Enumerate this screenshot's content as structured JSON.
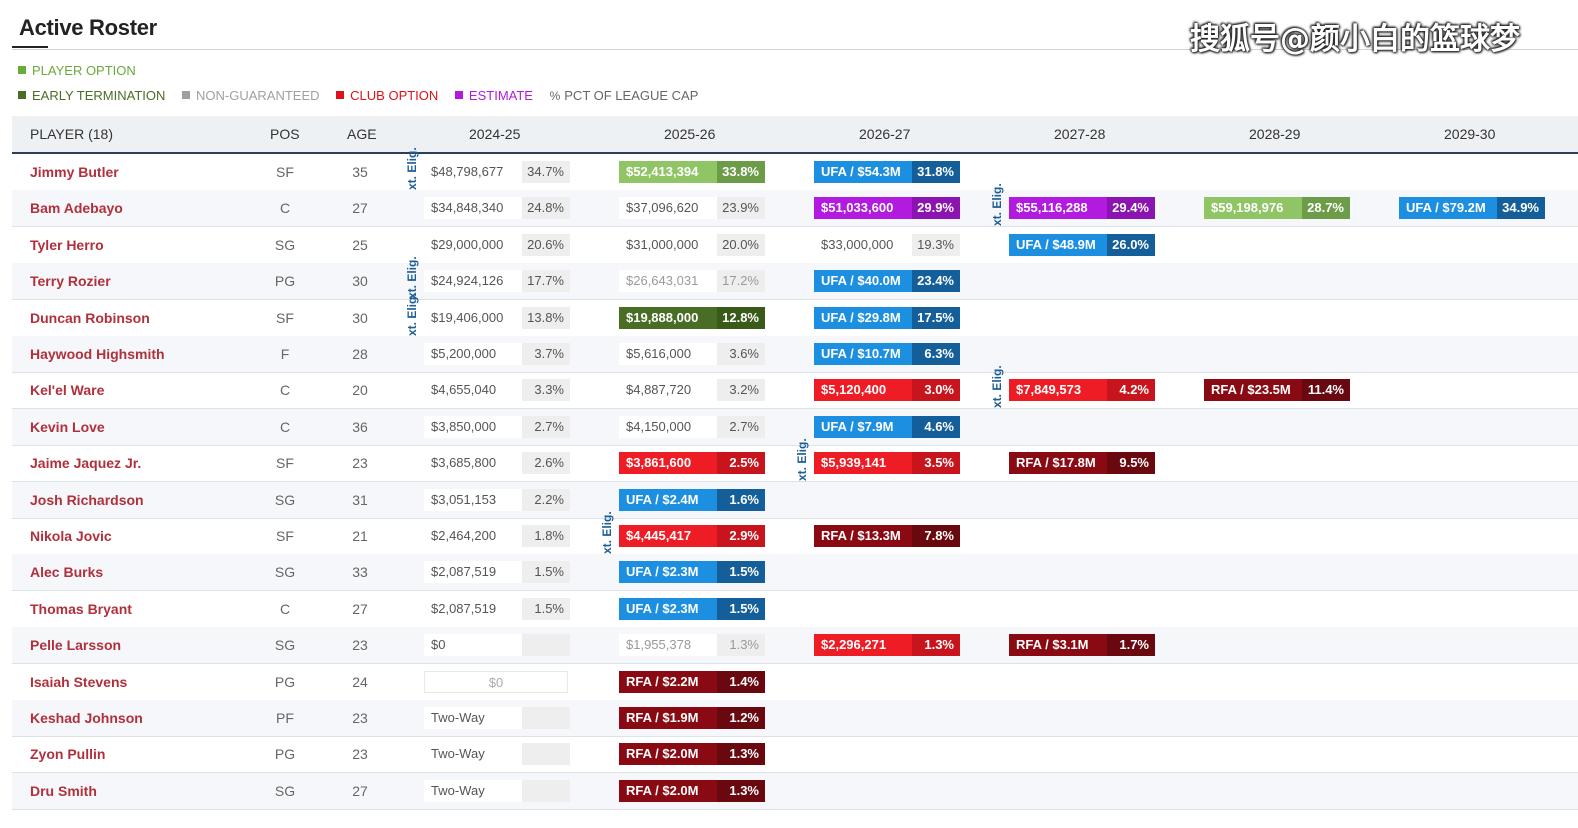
{
  "page_title": "Active Roster",
  "watermark": "搜狐号@颜小白的篮球梦",
  "legend": [
    {
      "label": "PLAYER OPTION",
      "color": "#6aaa3a"
    },
    {
      "label": "EARLY TERMINATION",
      "color": "#4a6d25"
    },
    {
      "label": "NON-GUARANTEED",
      "color": "#a0a0a0"
    },
    {
      "label": "CLUB OPTION",
      "color": "#e0101a"
    },
    {
      "label": "ESTIMATE",
      "color": "#b21ae0"
    },
    {
      "label": "PCT OF LEAGUE CAP",
      "color": "#666666",
      "icon": "%"
    }
  ],
  "ext_label": "xt. Elig.",
  "columns": [
    "PLAYER (18)",
    "POS",
    "AGE",
    "2024-25",
    "2025-26",
    "2026-27",
    "2027-28",
    "2028-29",
    "2029-30"
  ],
  "players": [
    {
      "name": "Jimmy Butler",
      "pos": "SF",
      "age": "35",
      "cells": [
        {
          "a": "$48,798,677",
          "p": "34.7%",
          "s": "plain"
        },
        {
          "a": "$52,413,394",
          "p": "33.8%",
          "s": "player"
        },
        {
          "a": "UFA / $54.3M",
          "p": "31.8%",
          "s": "ufa"
        },
        null,
        null,
        null
      ]
    },
    {
      "name": "Bam Adebayo",
      "pos": "C",
      "age": "27",
      "cells": [
        {
          "a": "$34,848,340",
          "p": "24.8%",
          "s": "plain"
        },
        {
          "a": "$37,096,620",
          "p": "23.9%",
          "s": "plain"
        },
        {
          "a": "$51,033,600",
          "p": "29.9%",
          "s": "est"
        },
        {
          "a": "$55,116,288",
          "p": "29.4%",
          "s": "est"
        },
        {
          "a": "$59,198,976",
          "p": "28.7%",
          "s": "player"
        },
        {
          "a": "UFA / $79.2M",
          "p": "34.9%",
          "s": "ufa"
        }
      ]
    },
    {
      "name": "Tyler Herro",
      "pos": "SG",
      "age": "25",
      "cells": [
        {
          "a": "$29,000,000",
          "p": "20.6%",
          "s": "plain"
        },
        {
          "a": "$31,000,000",
          "p": "20.0%",
          "s": "plain"
        },
        {
          "a": "$33,000,000",
          "p": "19.3%",
          "s": "plain"
        },
        {
          "a": "UFA / $48.9M",
          "p": "26.0%",
          "s": "ufa"
        },
        null,
        null
      ]
    },
    {
      "name": "Terry Rozier",
      "pos": "PG",
      "age": "30",
      "cells": [
        {
          "a": "$24,924,126",
          "p": "17.7%",
          "s": "plain"
        },
        {
          "a": "$26,643,031",
          "p": "17.2%",
          "s": "dim"
        },
        {
          "a": "UFA / $40.0M",
          "p": "23.4%",
          "s": "ufa"
        },
        null,
        null,
        null
      ]
    },
    {
      "name": "Duncan Robinson",
      "pos": "SF",
      "age": "30",
      "cells": [
        {
          "a": "$19,406,000",
          "p": "13.8%",
          "s": "plain"
        },
        {
          "a": "$19,888,000",
          "p": "12.8%",
          "s": "early"
        },
        {
          "a": "UFA / $29.8M",
          "p": "17.5%",
          "s": "ufa"
        },
        null,
        null,
        null
      ]
    },
    {
      "name": "Haywood Highsmith",
      "pos": "F",
      "age": "28",
      "cells": [
        {
          "a": "$5,200,000",
          "p": "3.7%",
          "s": "plain"
        },
        {
          "a": "$5,616,000",
          "p": "3.6%",
          "s": "plain"
        },
        {
          "a": "UFA / $10.7M",
          "p": "6.3%",
          "s": "ufa"
        },
        null,
        null,
        null
      ]
    },
    {
      "name": "Kel'el Ware",
      "pos": "C",
      "age": "20",
      "cells": [
        {
          "a": "$4,655,040",
          "p": "3.3%",
          "s": "plain"
        },
        {
          "a": "$4,887,720",
          "p": "3.2%",
          "s": "plain"
        },
        {
          "a": "$5,120,400",
          "p": "3.0%",
          "s": "club"
        },
        {
          "a": "$7,849,573",
          "p": "4.2%",
          "s": "club"
        },
        {
          "a": "RFA / $23.5M",
          "p": "11.4%",
          "s": "rfa"
        },
        null
      ]
    },
    {
      "name": "Kevin Love",
      "pos": "C",
      "age": "36",
      "cells": [
        {
          "a": "$3,850,000",
          "p": "2.7%",
          "s": "plain"
        },
        {
          "a": "$4,150,000",
          "p": "2.7%",
          "s": "plain"
        },
        {
          "a": "UFA / $7.9M",
          "p": "4.6%",
          "s": "ufa"
        },
        null,
        null,
        null
      ]
    },
    {
      "name": "Jaime Jaquez Jr.",
      "pos": "SF",
      "age": "23",
      "cells": [
        {
          "a": "$3,685,800",
          "p": "2.6%",
          "s": "plain"
        },
        {
          "a": "$3,861,600",
          "p": "2.5%",
          "s": "club"
        },
        {
          "a": "$5,939,141",
          "p": "3.5%",
          "s": "club"
        },
        {
          "a": "RFA / $17.8M",
          "p": "9.5%",
          "s": "rfa"
        },
        null,
        null
      ]
    },
    {
      "name": "Josh Richardson",
      "pos": "SG",
      "age": "31",
      "cells": [
        {
          "a": "$3,051,153",
          "p": "2.2%",
          "s": "plain"
        },
        {
          "a": "UFA / $2.4M",
          "p": "1.6%",
          "s": "ufa"
        },
        null,
        null,
        null,
        null
      ]
    },
    {
      "name": "Nikola Jovic",
      "pos": "SF",
      "age": "21",
      "cells": [
        {
          "a": "$2,464,200",
          "p": "1.8%",
          "s": "plain"
        },
        {
          "a": "$4,445,417",
          "p": "2.9%",
          "s": "club"
        },
        {
          "a": "RFA / $13.3M",
          "p": "7.8%",
          "s": "rfa"
        },
        null,
        null,
        null
      ]
    },
    {
      "name": "Alec Burks",
      "pos": "SG",
      "age": "33",
      "cells": [
        {
          "a": "$2,087,519",
          "p": "1.5%",
          "s": "plain"
        },
        {
          "a": "UFA / $2.3M",
          "p": "1.5%",
          "s": "ufa"
        },
        null,
        null,
        null,
        null
      ]
    },
    {
      "name": "Thomas Bryant",
      "pos": "C",
      "age": "27",
      "cells": [
        {
          "a": "$2,087,519",
          "p": "1.5%",
          "s": "plain"
        },
        {
          "a": "UFA / $2.3M",
          "p": "1.5%",
          "s": "ufa"
        },
        null,
        null,
        null,
        null
      ]
    },
    {
      "name": "Pelle Larsson",
      "pos": "SG",
      "age": "23",
      "cells": [
        {
          "a": "$0",
          "p": "",
          "s": "plain"
        },
        {
          "a": "$1,955,378",
          "p": "1.3%",
          "s": "dim"
        },
        {
          "a": "$2,296,271",
          "p": "1.3%",
          "s": "club"
        },
        {
          "a": "RFA / $3.1M",
          "p": "1.7%",
          "s": "rfa"
        },
        null,
        null
      ]
    },
    {
      "name": "Isaiah Stevens",
      "pos": "PG",
      "age": "24",
      "cells": [
        {
          "a": "$0",
          "p": "",
          "s": "center"
        },
        {
          "a": "RFA / $2.2M",
          "p": "1.4%",
          "s": "rfa"
        },
        null,
        null,
        null,
        null
      ]
    },
    {
      "name": "Keshad Johnson",
      "pos": "PF",
      "age": "23",
      "cells": [
        {
          "a": "Two-Way",
          "p": "",
          "s": "twoway"
        },
        {
          "a": "RFA / $1.9M",
          "p": "1.2%",
          "s": "rfa"
        },
        null,
        null,
        null,
        null
      ]
    },
    {
      "name": "Zyon Pullin",
      "pos": "PG",
      "age": "23",
      "cells": [
        {
          "a": "Two-Way",
          "p": "",
          "s": "twoway"
        },
        {
          "a": "RFA / $2.0M",
          "p": "1.3%",
          "s": "rfa"
        },
        null,
        null,
        null,
        null
      ]
    },
    {
      "name": "Dru Smith",
      "pos": "SG",
      "age": "27",
      "cells": [
        {
          "a": "Two-Way",
          "p": "",
          "s": "twoway"
        },
        {
          "a": "RFA / $2.0M",
          "p": "1.3%",
          "s": "rfa"
        },
        null,
        null,
        null,
        null
      ]
    }
  ],
  "ext_markers": [
    {
      "row": 0,
      "col": 0
    },
    {
      "row": 1,
      "col": 3
    },
    {
      "row": 3,
      "col": 0
    },
    {
      "row": 4,
      "col": 0
    },
    {
      "row": 6,
      "col": 3
    },
    {
      "row": 8,
      "col": 2
    },
    {
      "row": 10,
      "col": 1
    }
  ]
}
